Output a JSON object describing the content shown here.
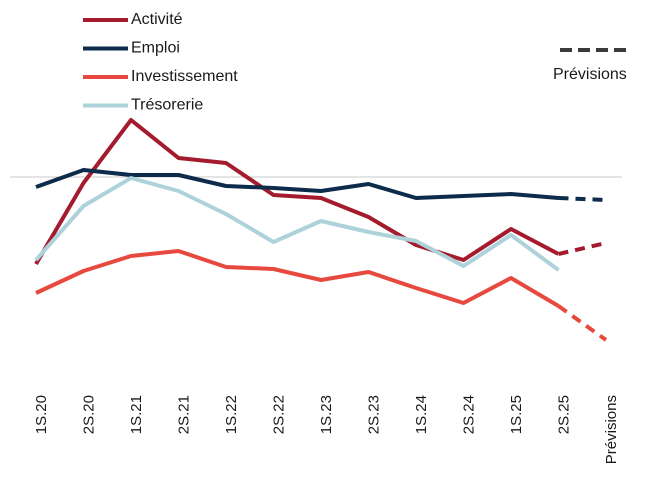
{
  "chart_data": {
    "type": "line",
    "categories": [
      "1S.20",
      "2S.20",
      "1S.21",
      "2S.21",
      "1S.22",
      "2S.22",
      "1S.23",
      "2S.23",
      "1S.24",
      "2S.24",
      "1S.25",
      "2S.25",
      "Prévisions"
    ],
    "series": [
      {
        "name": "Activité",
        "color": "#a31b2d",
        "values": [
          -8.7,
          -0.6,
          5.7,
          1.9,
          1.4,
          -1.8,
          -2.1,
          -4.0,
          -6.8,
          -8.3,
          -5.2,
          -7.7,
          -6.6
        ]
      },
      {
        "name": "Emploi",
        "color": "#0d2b4a",
        "values": [
          -1.0,
          0.7,
          0.2,
          0.2,
          -0.9,
          -1.1,
          -1.4,
          -0.7,
          -2.1,
          -1.9,
          -1.7,
          -2.1,
          -2.3
        ]
      },
      {
        "name": "Investissement",
        "color": "#e8493e",
        "values": [
          -11.6,
          -9.4,
          -7.9,
          -7.4,
          -9.0,
          -9.2,
          -10.3,
          -9.5,
          -11.1,
          -12.6,
          -10.1,
          -12.9,
          -16.3
        ]
      },
      {
        "name": "Trésorerie",
        "color": "#aed2da",
        "values": [
          -8.3,
          -2.9,
          -0.1,
          -1.4,
          -3.7,
          -6.5,
          -4.4,
          -5.5,
          -6.4,
          -8.9,
          -5.8,
          -9.3,
          null
        ]
      }
    ],
    "ylim": [
      -20,
      8
    ],
    "reference_line": 0,
    "forecast_label": "Prévisions",
    "forecast_color": "#3a3a3a"
  }
}
